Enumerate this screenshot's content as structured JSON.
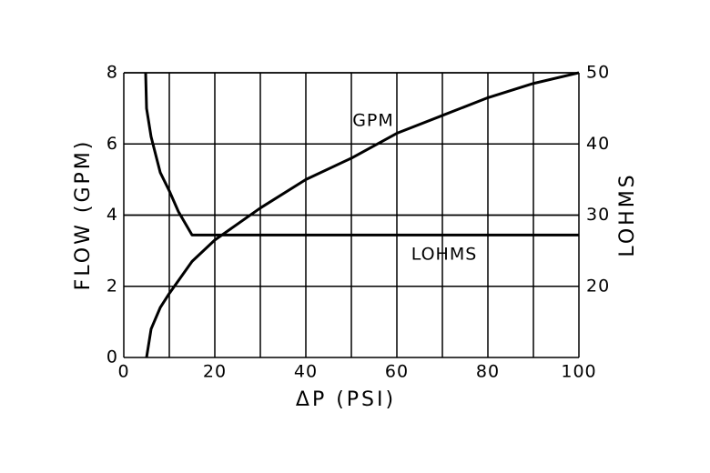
{
  "chart_data": {
    "type": "line",
    "xlabel": "ΔP    (PSI)",
    "ylabel": "FLOW    (GPM)",
    "y2label": "LOHMS",
    "xlim": [
      0,
      100
    ],
    "xticks": [
      0,
      20,
      40,
      60,
      80,
      100
    ],
    "xminor": [
      10,
      30,
      50,
      70,
      90
    ],
    "ylim": [
      0,
      8
    ],
    "yticks": [
      0,
      2,
      4,
      6,
      8
    ],
    "y2lim": [
      10,
      50
    ],
    "y2ticks": [
      20,
      30,
      40,
      50
    ],
    "grid": true,
    "series": [
      {
        "name": "GPM",
        "color": "#000000",
        "x": [
          5,
          6,
          8,
          10,
          15,
          20,
          30,
          40,
          50,
          60,
          70,
          80,
          90,
          100
        ],
        "values": [
          0,
          0.8,
          1.4,
          1.8,
          2.7,
          3.3,
          4.2,
          5.0,
          5.6,
          6.3,
          6.8,
          7.3,
          7.7,
          8.0
        ]
      },
      {
        "name": "LOHMS",
        "color": "#000000",
        "axis": "y2",
        "x": [
          4.8,
          5,
          6,
          8,
          10,
          12,
          15,
          100
        ],
        "values": [
          50,
          45,
          41,
          36,
          33.4,
          30.5,
          27.2,
          27.2
        ]
      }
    ]
  }
}
